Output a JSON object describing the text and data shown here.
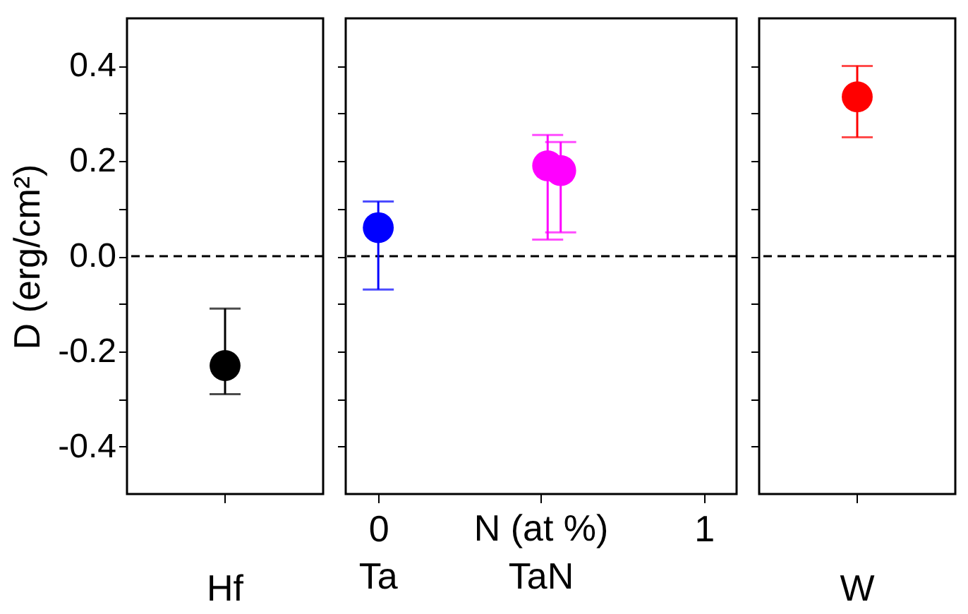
{
  "chart_data": [
    {
      "type": "scatter",
      "ylabel": "D (erg/cm²)",
      "categories": [
        "Hf"
      ],
      "ylim": [
        -0.5,
        0.5
      ],
      "yticks": [
        -0.4,
        {
          "value": -0.3,
          "label": null
        },
        -0.2,
        {
          "value": -0.1,
          "label": null
        },
        {
          "value": 0,
          "label": "0.0"
        },
        {
          "value": 0.1,
          "label": null
        },
        0.2,
        {
          "value": 0.3,
          "label": null
        },
        0.4
      ],
      "marker": "circle",
      "grid": false,
      "series": [
        {
          "color": "#000000",
          "values": [
            -0.23
          ],
          "errors": [
            [
              -0.29,
              -0.11
            ]
          ]
        }
      ],
      "ref_lines": [
        {
          "axis": "y",
          "value": 0,
          "line_style": "dashed",
          "color": "#000000"
        }
      ]
    },
    {
      "type": "scatter",
      "xlabel": "N (at %)",
      "xlim": [
        -0.1,
        1.1
      ],
      "xticks": [
        0,
        {
          "value": 0.5,
          "label": null
        },
        1
      ],
      "ylim": [
        -0.5,
        0.5
      ],
      "yticks": [
        -0.4,
        -0.3,
        -0.2,
        -0.1,
        0,
        0.1,
        0.2,
        0.3,
        0.4
      ],
      "tick_labels": "x",
      "marker": "circle",
      "grid": false,
      "series": [
        {
          "color": "#0000ff",
          "x": [
            0
          ],
          "values": [
            0.06
          ],
          "errors": [
            [
              -0.07,
              0.115
            ]
          ]
        },
        {
          "color": "#ff00ff",
          "x": [
            0.52,
            0.56
          ],
          "values": [
            0.19,
            0.18
          ],
          "errors": [
            [
              0.035,
              0.255
            ],
            [
              0.05,
              0.24
            ]
          ]
        }
      ],
      "annotations": [
        "Ta",
        "TaN"
      ],
      "ref_lines": [
        {
          "axis": "y",
          "value": 0,
          "line_style": "dashed",
          "color": "#000000"
        }
      ]
    },
    {
      "type": "scatter",
      "categories": [
        "W"
      ],
      "ylim": [
        -0.5,
        0.5
      ],
      "yticks": [
        -0.4,
        -0.3,
        -0.2,
        -0.1,
        0,
        0.1,
        0.2,
        0.3,
        0.4
      ],
      "tick_labels": "x",
      "marker": "circle",
      "grid": false,
      "series": [
        {
          "color": "#ff0000",
          "values": [
            0.335
          ],
          "errors": [
            [
              0.25,
              0.4
            ]
          ]
        }
      ],
      "ref_lines": [
        {
          "axis": "y",
          "value": 0,
          "line_style": "dashed",
          "color": "#000000"
        }
      ]
    }
  ]
}
